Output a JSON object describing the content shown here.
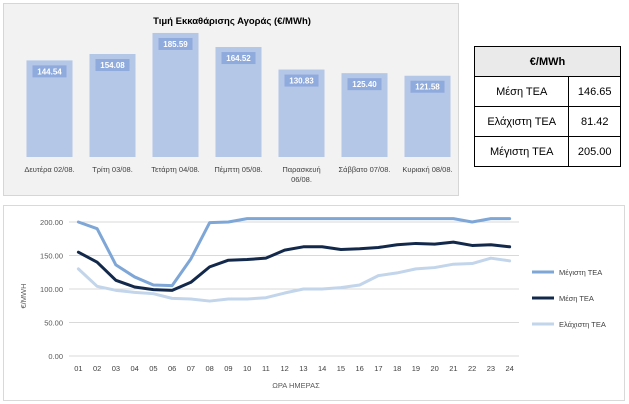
{
  "bar_chart": {
    "title": "Τιμή Εκκαθάρισης Αγοράς (€/MWh)"
  },
  "summary_table": {
    "header": "€/MWh",
    "rows": [
      {
        "label": "Μέση ΤΕΑ",
        "value": "146.65"
      },
      {
        "label": "Ελάχιστη ΤΕΑ",
        "value": "81.42"
      },
      {
        "label": "Μέγιστη ΤΕΑ",
        "value": "205.00"
      }
    ]
  },
  "colors": {
    "bar_fill": "#b4c7e7",
    "bar_label_bg": "#8faadc",
    "max_line": "#7ea6d6",
    "avg_line": "#13294b",
    "min_line": "#c2d5ea"
  },
  "chart_data": [
    {
      "type": "bar",
      "title": "Τιμή Εκκαθάρισης Αγοράς (€/MWh)",
      "categories": [
        "Δευτέρα 02/08.",
        "Τρίτη 03/08.",
        "Τετάρτη 04/08.",
        "Πέμπτη 05/08.",
        "Παρασκευή 06/08.",
        "Σάββατο 07/08.",
        "Κυριακή 08/08."
      ],
      "values": [
        144.54,
        154.08,
        185.59,
        164.52,
        130.83,
        125.4,
        121.58
      ],
      "data_labels": [
        "144.54",
        "154.08",
        "185.59",
        "164.52",
        "130.83",
        "125.40",
        "121.58"
      ],
      "ylim": [
        0,
        190
      ],
      "grid": false
    },
    {
      "type": "line",
      "xlabel": "ΩΡΑ ΗΜΕΡΑΣ",
      "ylabel": "€/MWH",
      "x": [
        "01",
        "02",
        "03",
        "04",
        "05",
        "06",
        "07",
        "08",
        "09",
        "10",
        "11",
        "12",
        "13",
        "14",
        "15",
        "16",
        "17",
        "18",
        "19",
        "20",
        "21",
        "22",
        "23",
        "24"
      ],
      "ylim": [
        0,
        200
      ],
      "yticks": [
        "0.00",
        "50.00",
        "100.00",
        "150.00",
        "200.00"
      ],
      "yticks_values": [
        0,
        50,
        100,
        150,
        200
      ],
      "grid": true,
      "legend": "right",
      "series": [
        {
          "name": "Μέγιστη ΤΕΑ",
          "values": [
            200,
            190,
            136,
            118,
            106,
            105,
            145,
            199,
            200,
            205,
            205,
            205,
            205,
            205,
            205,
            205,
            205,
            205,
            205,
            205,
            205,
            200,
            205,
            205
          ]
        },
        {
          "name": "Μέση ΤΕΑ",
          "values": [
            155,
            140,
            113,
            103,
            99,
            98,
            110,
            133,
            143,
            144,
            146,
            158,
            163,
            163,
            159,
            160,
            162,
            166,
            168,
            167,
            170,
            165,
            166,
            163
          ]
        },
        {
          "name": "Ελάχιστη ΤΕΑ",
          "values": [
            130,
            104,
            98,
            95,
            93,
            86,
            85,
            82,
            85,
            85,
            87,
            94,
            100,
            100,
            102,
            106,
            120,
            124,
            130,
            132,
            137,
            138,
            146,
            142
          ]
        }
      ]
    }
  ]
}
